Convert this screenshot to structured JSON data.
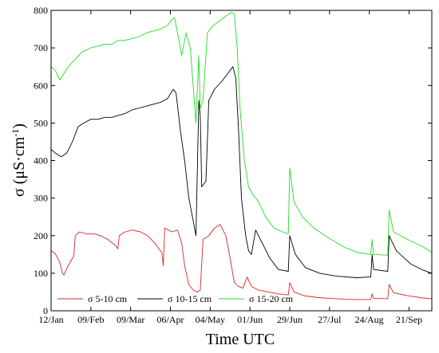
{
  "chart_data": {
    "type": "line",
    "xlabel": "Time UTC",
    "ylabel": "σ (μS·cm",
    "ylabel_superscript": "-1",
    "ylabel_close": ")",
    "ylim": [
      0,
      800
    ],
    "yticks": [
      0,
      100,
      200,
      300,
      400,
      500,
      600,
      700,
      800
    ],
    "ytick_labels": [
      "0",
      "100",
      "200",
      "300",
      "400",
      "500",
      "600",
      "700",
      "800"
    ],
    "xlim": [
      "2018-01-12",
      "2018-10-07"
    ],
    "xticks": [
      "2018-01-12",
      "2018-02-09",
      "2018-03-09",
      "2018-04-06",
      "2018-05-04",
      "2018-06-01",
      "2018-06-29",
      "2018-07-27",
      "2018-08-24",
      "2018-09-21"
    ],
    "xtick_labels": [
      "12/Jan",
      "09/Feb",
      "09/Mar",
      "06/Apr",
      "04/May",
      "01/Jun",
      "29/Jun",
      "27/Jul",
      "24/Aug",
      "21/Sep"
    ],
    "grid": false,
    "legend_position": "bottom",
    "series": [
      {
        "name": "σ 5-10 cm",
        "color": "#d62728",
        "points": [
          [
            "2018-01-12",
            160
          ],
          [
            "2018-01-15",
            152
          ],
          [
            "2018-01-18",
            130
          ],
          [
            "2018-01-20",
            100
          ],
          [
            "2018-01-21",
            95
          ],
          [
            "2018-01-24",
            120
          ],
          [
            "2018-01-27",
            140
          ],
          [
            "2018-01-28",
            145
          ],
          [
            "2018-01-29",
            200
          ],
          [
            "2018-02-01",
            210
          ],
          [
            "2018-02-06",
            205
          ],
          [
            "2018-02-11",
            205
          ],
          [
            "2018-02-16",
            200
          ],
          [
            "2018-02-21",
            190
          ],
          [
            "2018-02-26",
            175
          ],
          [
            "2018-02-28",
            165
          ],
          [
            "2018-03-01",
            200
          ],
          [
            "2018-03-05",
            210
          ],
          [
            "2018-03-10",
            215
          ],
          [
            "2018-03-16",
            210
          ],
          [
            "2018-03-21",
            200
          ],
          [
            "2018-03-26",
            180
          ],
          [
            "2018-03-31",
            155
          ],
          [
            "2018-04-01",
            120
          ],
          [
            "2018-04-02",
            220
          ],
          [
            "2018-04-07",
            210
          ],
          [
            "2018-04-11",
            215
          ],
          [
            "2018-04-14",
            180
          ],
          [
            "2018-04-16",
            120
          ],
          [
            "2018-04-19",
            70
          ],
          [
            "2018-04-22",
            55
          ],
          [
            "2018-04-25",
            50
          ],
          [
            "2018-04-27",
            55
          ],
          [
            "2018-04-29",
            190
          ],
          [
            "2018-05-03",
            200
          ],
          [
            "2018-05-07",
            220
          ],
          [
            "2018-05-11",
            230
          ],
          [
            "2018-05-15",
            200
          ],
          [
            "2018-05-18",
            140
          ],
          [
            "2018-05-21",
            75
          ],
          [
            "2018-05-24",
            65
          ],
          [
            "2018-05-27",
            60
          ],
          [
            "2018-05-30",
            90
          ],
          [
            "2018-06-02",
            65
          ],
          [
            "2018-06-07",
            55
          ],
          [
            "2018-06-14",
            50
          ],
          [
            "2018-06-21",
            45
          ],
          [
            "2018-06-28",
            42
          ],
          [
            "2018-06-29",
            75
          ],
          [
            "2018-07-02",
            50
          ],
          [
            "2018-07-09",
            40
          ],
          [
            "2018-07-19",
            35
          ],
          [
            "2018-08-01",
            32
          ],
          [
            "2018-08-14",
            30
          ],
          [
            "2018-08-25",
            30
          ],
          [
            "2018-08-26",
            45
          ],
          [
            "2018-08-27",
            33
          ],
          [
            "2018-09-06",
            32
          ],
          [
            "2018-09-07",
            70
          ],
          [
            "2018-09-10",
            48
          ],
          [
            "2018-09-20",
            40
          ],
          [
            "2018-10-01",
            34
          ],
          [
            "2018-10-07",
            32
          ]
        ]
      },
      {
        "name": "σ 10-15 cm",
        "color": "#000000",
        "points": [
          [
            "2018-01-12",
            430
          ],
          [
            "2018-01-15",
            420
          ],
          [
            "2018-01-19",
            410
          ],
          [
            "2018-01-23",
            420
          ],
          [
            "2018-01-27",
            450
          ],
          [
            "2018-01-31",
            490
          ],
          [
            "2018-02-04",
            500
          ],
          [
            "2018-02-09",
            510
          ],
          [
            "2018-02-14",
            510
          ],
          [
            "2018-02-19",
            515
          ],
          [
            "2018-02-24",
            515
          ],
          [
            "2018-02-28",
            520
          ],
          [
            "2018-03-05",
            525
          ],
          [
            "2018-03-10",
            535
          ],
          [
            "2018-03-15",
            540
          ],
          [
            "2018-03-20",
            545
          ],
          [
            "2018-03-25",
            550
          ],
          [
            "2018-03-30",
            555
          ],
          [
            "2018-04-04",
            565
          ],
          [
            "2018-04-08",
            590
          ],
          [
            "2018-04-10",
            580
          ],
          [
            "2018-04-13",
            480
          ],
          [
            "2018-04-16",
            400
          ],
          [
            "2018-04-19",
            300
          ],
          [
            "2018-04-22",
            240
          ],
          [
            "2018-04-24",
            200
          ],
          [
            "2018-04-26",
            560
          ],
          [
            "2018-04-27",
            520
          ],
          [
            "2018-04-28",
            330
          ],
          [
            "2018-05-01",
            345
          ],
          [
            "2018-05-03",
            560
          ],
          [
            "2018-05-07",
            590
          ],
          [
            "2018-05-12",
            610
          ],
          [
            "2018-05-16",
            630
          ],
          [
            "2018-05-20",
            650
          ],
          [
            "2018-05-22",
            620
          ],
          [
            "2018-05-24",
            480
          ],
          [
            "2018-05-26",
            300
          ],
          [
            "2018-05-29",
            200
          ],
          [
            "2018-05-31",
            160
          ],
          [
            "2018-06-02",
            150
          ],
          [
            "2018-06-05",
            215
          ],
          [
            "2018-06-09",
            185
          ],
          [
            "2018-06-15",
            140
          ],
          [
            "2018-06-21",
            110
          ],
          [
            "2018-06-28",
            105
          ],
          [
            "2018-06-29",
            200
          ],
          [
            "2018-07-03",
            150
          ],
          [
            "2018-07-10",
            115
          ],
          [
            "2018-07-20",
            100
          ],
          [
            "2018-08-01",
            92
          ],
          [
            "2018-08-15",
            88
          ],
          [
            "2018-08-25",
            90
          ],
          [
            "2018-08-26",
            150
          ],
          [
            "2018-08-27",
            110
          ],
          [
            "2018-09-06",
            105
          ],
          [
            "2018-09-07",
            200
          ],
          [
            "2018-09-12",
            160
          ],
          [
            "2018-09-22",
            125
          ],
          [
            "2018-10-01",
            108
          ],
          [
            "2018-10-07",
            100
          ]
        ]
      },
      {
        "name": "σ 15-20 cm",
        "color": "#22dd22",
        "points": [
          [
            "2018-01-12",
            650
          ],
          [
            "2018-01-15",
            640
          ],
          [
            "2018-01-18",
            615
          ],
          [
            "2018-01-20",
            625
          ],
          [
            "2018-01-24",
            650
          ],
          [
            "2018-01-29",
            670
          ],
          [
            "2018-02-03",
            690
          ],
          [
            "2018-02-09",
            700
          ],
          [
            "2018-02-14",
            705
          ],
          [
            "2018-02-19",
            710
          ],
          [
            "2018-02-24",
            710
          ],
          [
            "2018-02-28",
            720
          ],
          [
            "2018-03-05",
            720
          ],
          [
            "2018-03-10",
            725
          ],
          [
            "2018-03-15",
            730
          ],
          [
            "2018-03-20",
            740
          ],
          [
            "2018-03-25",
            745
          ],
          [
            "2018-03-30",
            750
          ],
          [
            "2018-04-04",
            760
          ],
          [
            "2018-04-07",
            775
          ],
          [
            "2018-04-09",
            780
          ],
          [
            "2018-04-12",
            720
          ],
          [
            "2018-04-14",
            680
          ],
          [
            "2018-04-17",
            740
          ],
          [
            "2018-04-20",
            700
          ],
          [
            "2018-04-22",
            600
          ],
          [
            "2018-04-24",
            500
          ],
          [
            "2018-04-26",
            680
          ],
          [
            "2018-04-27",
            540
          ],
          [
            "2018-04-29",
            560
          ],
          [
            "2018-05-02",
            740
          ],
          [
            "2018-05-06",
            760
          ],
          [
            "2018-05-10",
            770
          ],
          [
            "2018-05-15",
            785
          ],
          [
            "2018-05-19",
            795
          ],
          [
            "2018-05-21",
            790
          ],
          [
            "2018-05-23",
            700
          ],
          [
            "2018-05-25",
            540
          ],
          [
            "2018-05-28",
            400
          ],
          [
            "2018-05-31",
            330
          ],
          [
            "2018-06-03",
            310
          ],
          [
            "2018-06-07",
            290
          ],
          [
            "2018-06-12",
            250
          ],
          [
            "2018-06-18",
            220
          ],
          [
            "2018-06-24",
            210
          ],
          [
            "2018-06-28",
            205
          ],
          [
            "2018-06-29",
            380
          ],
          [
            "2018-07-02",
            290
          ],
          [
            "2018-07-08",
            250
          ],
          [
            "2018-07-16",
            220
          ],
          [
            "2018-07-26",
            195
          ],
          [
            "2018-08-06",
            170
          ],
          [
            "2018-08-16",
            155
          ],
          [
            "2018-08-25",
            150
          ],
          [
            "2018-08-26",
            190
          ],
          [
            "2018-08-27",
            150
          ],
          [
            "2018-09-06",
            148
          ],
          [
            "2018-09-07",
            270
          ],
          [
            "2018-09-10",
            210
          ],
          [
            "2018-09-20",
            190
          ],
          [
            "2018-10-01",
            170
          ],
          [
            "2018-10-07",
            155
          ]
        ]
      }
    ]
  }
}
